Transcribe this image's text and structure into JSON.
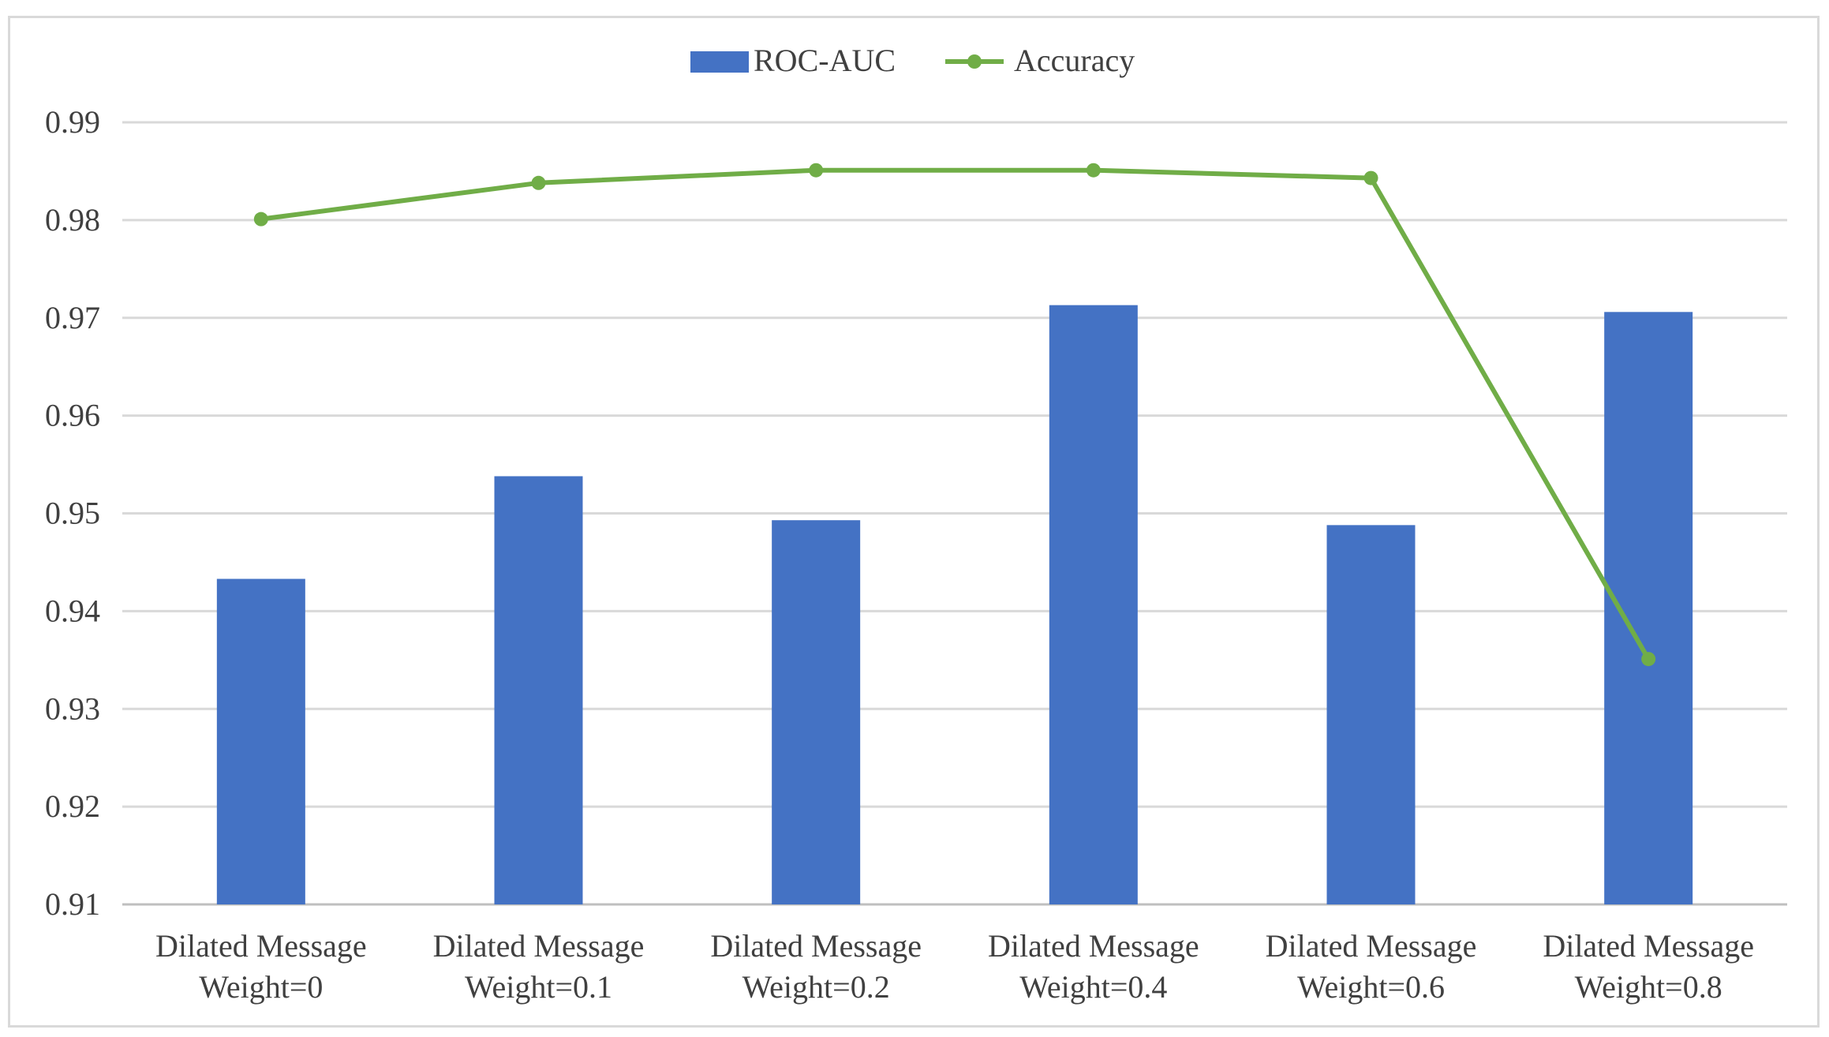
{
  "chart_data": {
    "type": "bar",
    "title": "",
    "xlabel": "",
    "ylabel": "",
    "ylim": [
      0.91,
      0.99
    ],
    "yticks": [
      "0.91",
      "0.92",
      "0.93",
      "0.94",
      "0.95",
      "0.96",
      "0.97",
      "0.98",
      "0.99"
    ],
    "grid": true,
    "legend_position": "top-center",
    "categories": [
      [
        "Dilated Message",
        "Weight=0"
      ],
      [
        "Dilated Message",
        "Weight=0.1"
      ],
      [
        "Dilated Message",
        "Weight=0.2"
      ],
      [
        "Dilated Message",
        "Weight=0.4"
      ],
      [
        "Dilated Message",
        "Weight=0.6"
      ],
      [
        "Dilated Message",
        "Weight=0.8"
      ]
    ],
    "series": [
      {
        "name": "ROC-AUC",
        "type": "bar",
        "color": "#4472c4",
        "values": [
          0.9433,
          0.9538,
          0.9493,
          0.9713,
          0.9488,
          0.9706
        ]
      },
      {
        "name": "Accuracy",
        "type": "line",
        "color": "#70ad47",
        "values": [
          0.9801,
          0.9838,
          0.9851,
          0.9851,
          0.9843,
          0.9351
        ]
      }
    ]
  }
}
